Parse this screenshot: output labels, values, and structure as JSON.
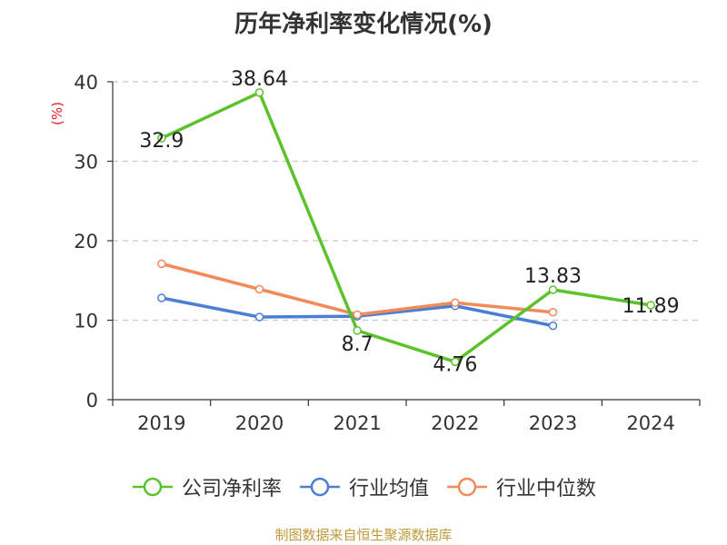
{
  "chart_data": {
    "type": "line",
    "title": "历年净利率变化情况(%)",
    "ylabel": "(%)",
    "categories": [
      "2019",
      "2020",
      "2021",
      "2022",
      "2023",
      "2024"
    ],
    "ylim": [
      0,
      40
    ],
    "yticks": [
      0,
      10,
      20,
      30,
      40
    ],
    "grid": true,
    "legend_position": "bottom",
    "series": [
      {
        "name": "公司净利率",
        "color": "#5cc22b",
        "values": [
          32.9,
          38.64,
          8.7,
          4.76,
          13.83,
          11.89
        ],
        "labels": [
          "32.9",
          "38.64",
          "8.7",
          "4.76",
          "13.83",
          "11.89"
        ]
      },
      {
        "name": "行业均值",
        "color": "#4b7fd6",
        "values": [
          12.8,
          10.4,
          10.5,
          11.8,
          9.3,
          null
        ],
        "labels": []
      },
      {
        "name": "行业中位数",
        "color": "#f28a5a",
        "values": [
          17.1,
          13.9,
          10.7,
          12.2,
          11.0,
          null
        ],
        "labels": []
      }
    ]
  },
  "source": {
    "text": "制图数据来自恒生聚源数据库",
    "color": "#c09a3c"
  },
  "ylabel_color": "#e02020"
}
